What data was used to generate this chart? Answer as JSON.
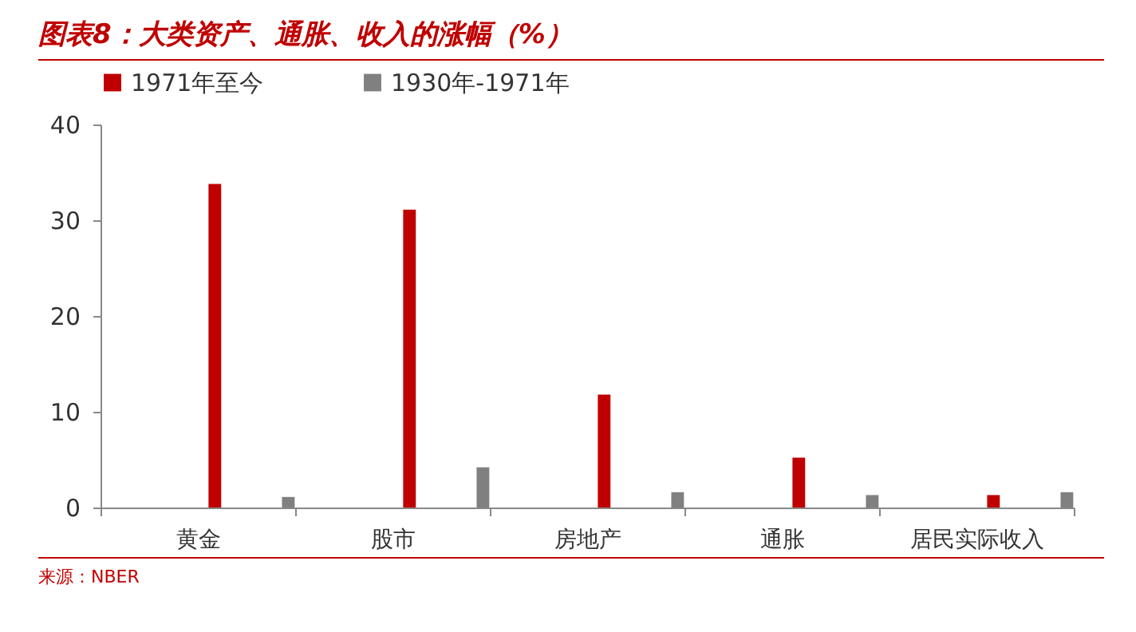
{
  "chart_data": {
    "type": "bar",
    "title": "图表8：大类资产、通胀、收入的涨幅（%）",
    "categories": [
      "黄金",
      "股市",
      "房地产",
      "通胀",
      "居民实际收入"
    ],
    "series": [
      {
        "name": "1971年至今",
        "color": "#c00000",
        "values": [
          33.8,
          31.1,
          11.8,
          5.2,
          1.3
        ]
      },
      {
        "name": "1930年-1971年",
        "color": "#808080",
        "values": [
          1.1,
          4.2,
          1.6,
          1.3,
          1.6
        ]
      }
    ],
    "ylim": [
      0,
      40
    ],
    "yticks": [
      0,
      10,
      20,
      30,
      40
    ],
    "grid": false,
    "legend": "top",
    "annotations": [
      "来源：NBER"
    ]
  }
}
